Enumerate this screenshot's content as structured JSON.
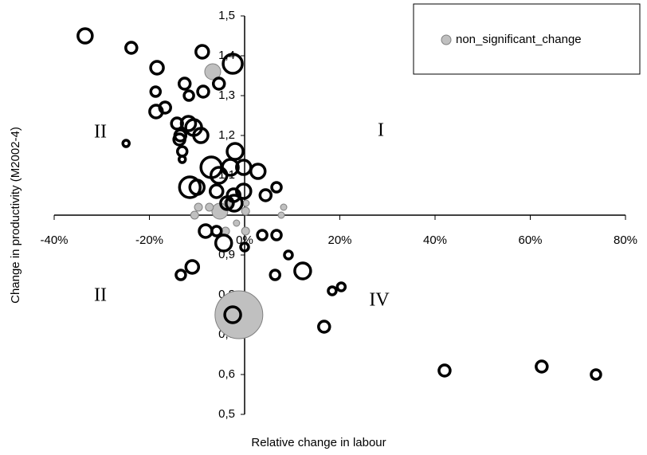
{
  "chart_data": {
    "type": "bubble",
    "x_label": "Relative change in labour",
    "y_label": "Change in productivity (M2002-4)",
    "annotations": [
      "I",
      "II",
      "II",
      "IV"
    ],
    "xlim": [
      -40,
      80
    ],
    "xticks": [
      {
        "value": -40,
        "label": "-40%"
      },
      {
        "value": -20,
        "label": "-20%"
      },
      {
        "value": 0,
        "label": "0%"
      },
      {
        "value": 20,
        "label": "20%"
      },
      {
        "value": 40,
        "label": "40%"
      },
      {
        "value": 60,
        "label": "60%"
      },
      {
        "value": 80,
        "label": "80%"
      }
    ],
    "ylim": [
      0.5,
      1.5
    ],
    "yticks": [
      {
        "value": 0.5,
        "label": "0,5"
      },
      {
        "value": 0.6,
        "label": "0,6"
      },
      {
        "value": 0.7,
        "label": "0,7"
      },
      {
        "value": 0.8,
        "label": "0,8"
      },
      {
        "value": 0.9,
        "label": "0,9"
      },
      {
        "value": 1.1,
        "label": "1,1"
      },
      {
        "value": 1.2,
        "label": "1,2"
      },
      {
        "value": 1.3,
        "label": "1,3"
      },
      {
        "value": 1.4,
        "label": "1,4"
      },
      {
        "value": 1.5,
        "label": "1,5"
      }
    ],
    "x_axis_crosses": 1,
    "y_axis_crosses": 0,
    "legend_position": "upper right",
    "series": [
      {
        "name": "non_significant_change",
        "color": "#c0c0c0",
        "x": [
          -6.7,
          -1.2,
          -5.2,
          -10.5,
          -9.7,
          -7.4,
          -3.5,
          0.3,
          0.2,
          0.2,
          8.2,
          7.7,
          -4.0,
          -1.7
        ],
        "y": [
          1.36,
          0.75,
          1.01,
          1.0,
          1.02,
          1.02,
          1.03,
          1.03,
          1.01,
          0.96,
          1.02,
          1.0,
          0.96,
          0.98
        ],
        "sizes": [
          10,
          30,
          10,
          5,
          5,
          5,
          5,
          4,
          5,
          5,
          4,
          4,
          5,
          4
        ]
      },
      {
        "color": "#000000",
        "x": [
          -33.5,
          -23.8,
          -8.9,
          -2.5,
          -18.4,
          -12.6,
          -5.4,
          -18.7,
          -11.7,
          -8.7,
          -18.6,
          -16.7,
          -14.2,
          -11.8,
          -10.7,
          -13.5,
          -9.2,
          -13.7,
          -13.1,
          -24.9,
          -2.0,
          -13.1,
          -7.0,
          -3.0,
          -0.2,
          2.8,
          -5.4,
          -11.5,
          -10.0,
          -5.9,
          -2.3,
          -0.2,
          4.4,
          6.7,
          -3.7,
          -2.2,
          -8.2,
          -5.9,
          -4.4,
          0,
          3.7,
          6.7,
          9.2,
          -11.0,
          -13.4,
          6.4,
          12.2,
          18.4,
          20.3,
          16.7,
          -2.5,
          42.0,
          62.4,
          73.8
        ],
        "y": [
          1.45,
          1.42,
          1.41,
          1.38,
          1.37,
          1.33,
          1.33,
          1.31,
          1.3,
          1.31,
          1.26,
          1.27,
          1.23,
          1.23,
          1.22,
          1.2,
          1.2,
          1.19,
          1.16,
          1.18,
          1.16,
          1.14,
          1.12,
          1.12,
          1.12,
          1.11,
          1.1,
          1.07,
          1.07,
          1.06,
          1.05,
          1.06,
          1.05,
          1.07,
          1.03,
          1.03,
          0.96,
          0.96,
          0.93,
          0.92,
          0.95,
          0.95,
          0.9,
          0.87,
          0.85,
          0.85,
          0.86,
          0.81,
          0.82,
          0.72,
          0.75,
          0.61,
          0.62,
          0.6
        ],
        "sizes": [
          9,
          7,
          8,
          12,
          8,
          7,
          7,
          6,
          6,
          7,
          8,
          7,
          7,
          9,
          10,
          7,
          9,
          7,
          6,
          4,
          10,
          4,
          13,
          10,
          9,
          9,
          10,
          13,
          9,
          8,
          8,
          9,
          7,
          6,
          8,
          10,
          8,
          6,
          10,
          5,
          6,
          6,
          5,
          8,
          6,
          6,
          10,
          5,
          5,
          7,
          10,
          7,
          7,
          6
        ]
      }
    ]
  }
}
